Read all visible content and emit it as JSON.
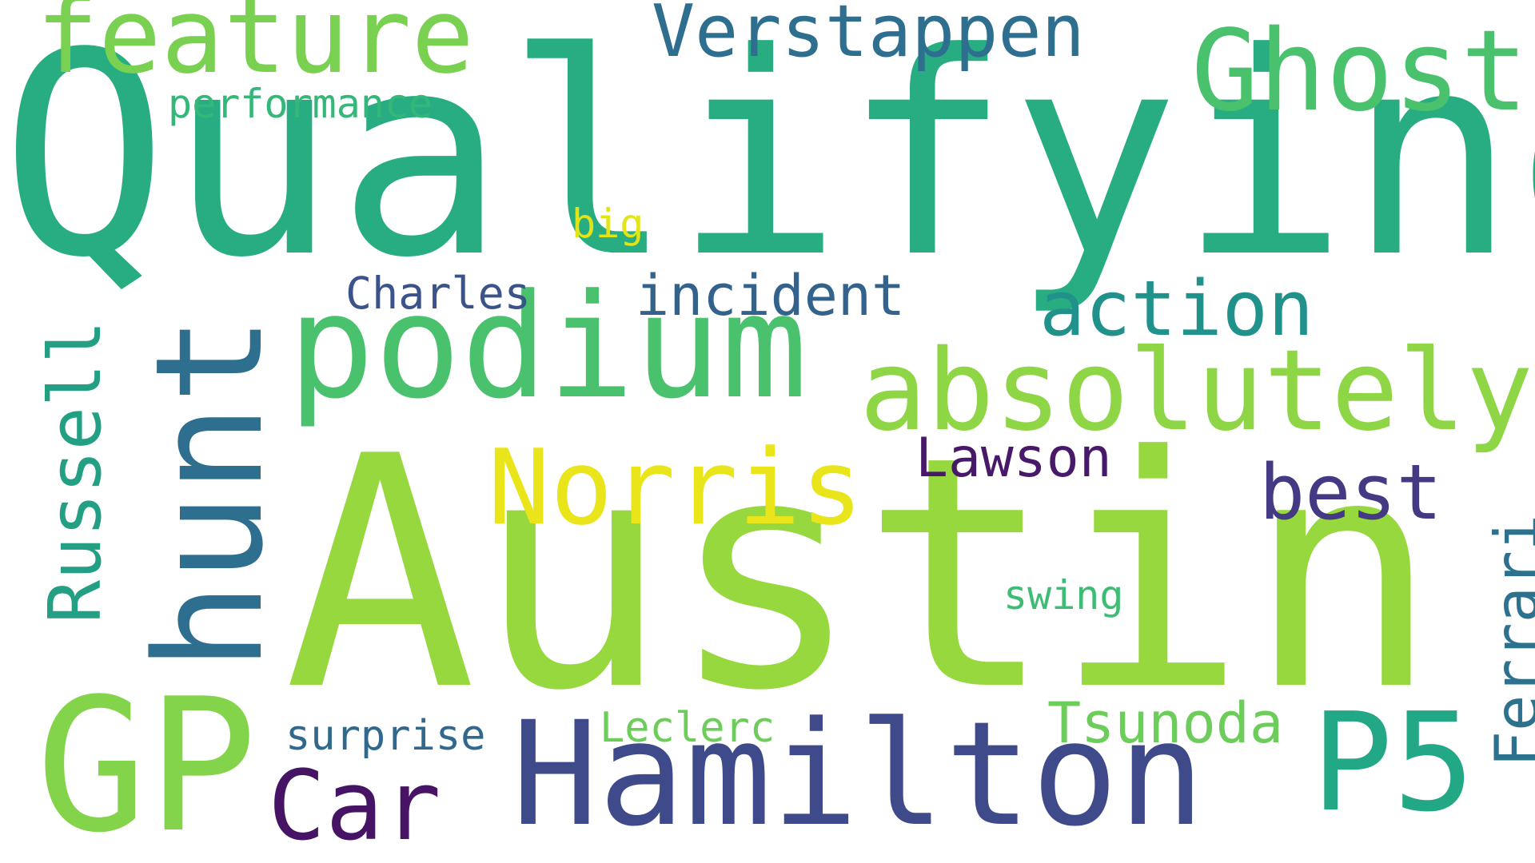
{
  "words": {
    "qualifying": {
      "text": "Qualifying",
      "color": "#27ad81"
    },
    "austin": {
      "text": "Austin",
      "color": "#96d83e"
    },
    "hunt": {
      "text": "hunt",
      "color": "#2e6e8e"
    },
    "podium": {
      "text": "podium",
      "color": "#4ac16d"
    },
    "absolutely": {
      "text": "absolutely",
      "color": "#8ed645"
    },
    "hamilton": {
      "text": "Hamilton",
      "color": "#3f4a8a"
    },
    "gp": {
      "text": "GP",
      "color": "#84d44b"
    },
    "norris": {
      "text": "Norris",
      "color": "#e9e51a"
    },
    "ghost": {
      "text": "Ghost",
      "color": "#4ac16d"
    },
    "feature": {
      "text": "feature",
      "color": "#7ad151"
    },
    "p5": {
      "text": "P5",
      "color": "#22a884"
    },
    "car": {
      "text": "Car",
      "color": "#471365"
    },
    "verstappen": {
      "text": "Verstappen",
      "color": "#2e6e8e"
    },
    "action": {
      "text": "action",
      "color": "#21918c"
    },
    "best": {
      "text": "best",
      "color": "#443a83"
    },
    "russell": {
      "text": "Russell",
      "color": "#23a083"
    },
    "ferrari": {
      "text": "Ferrari",
      "color": "#2c728e"
    },
    "tsunoda": {
      "text": "Tsunoda",
      "color": "#6ccd5a"
    },
    "lawson": {
      "text": "Lawson",
      "color": "#48186a"
    },
    "incident": {
      "text": "incident",
      "color": "#33638d"
    },
    "charles": {
      "text": "Charles",
      "color": "#3b528b"
    },
    "performance": {
      "text": "performance",
      "color": "#35b779"
    },
    "surprise": {
      "text": "surprise",
      "color": "#31688e"
    },
    "leclerc": {
      "text": "Leclerc",
      "color": "#6ccd5a"
    },
    "swing": {
      "text": "swing",
      "color": "#3dbc74"
    },
    "big": {
      "text": "big",
      "color": "#e2e418"
    }
  }
}
